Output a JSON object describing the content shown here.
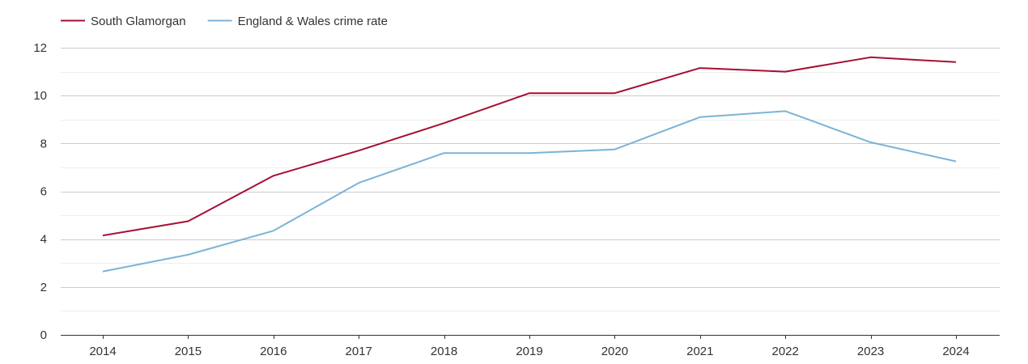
{
  "chart_data": {
    "type": "line",
    "x": [
      "2014",
      "2015",
      "2016",
      "2017",
      "2018",
      "2019",
      "2020",
      "2021",
      "2022",
      "2023",
      "2024"
    ],
    "series": [
      {
        "name": "South Glamorgan",
        "color": "#a50f34",
        "values": [
          4.15,
          4.75,
          6.65,
          7.7,
          8.85,
          10.1,
          10.1,
          11.15,
          11.0,
          11.6,
          11.4
        ]
      },
      {
        "name": "England & Wales crime rate",
        "color": "#7bb3d6",
        "values": [
          2.65,
          3.35,
          4.35,
          6.35,
          7.6,
          7.6,
          7.75,
          9.1,
          9.35,
          8.05,
          7.25
        ]
      }
    ],
    "title": "",
    "xlabel": "",
    "ylabel": "",
    "ylim": [
      0,
      12
    ],
    "yticks": [
      "0",
      "2",
      "4",
      "6",
      "8",
      "10",
      "12"
    ],
    "grid": true,
    "legend": "top-left"
  }
}
